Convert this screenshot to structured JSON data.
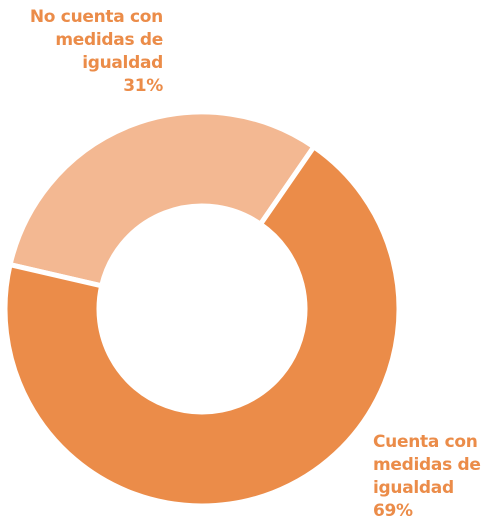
{
  "chart_data": {
    "type": "donut",
    "categories": [
      "No cuenta con medidas de igualdad",
      "Cuenta con medidas de igualdad"
    ],
    "values": [
      31,
      69
    ],
    "value_labels": [
      "31%",
      "69%"
    ],
    "colors": [
      "#f3b892",
      "#eb8c49"
    ]
  }
}
